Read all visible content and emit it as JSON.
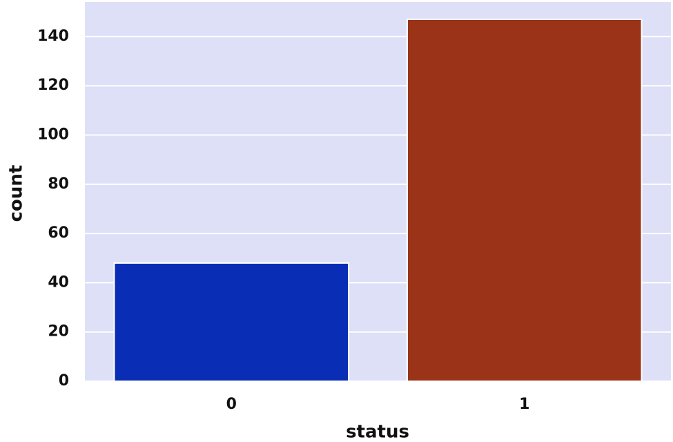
{
  "chart_data": {
    "type": "bar",
    "x_label": "status",
    "y_label": "count",
    "categories": [
      "0",
      "1"
    ],
    "values": [
      48,
      147
    ],
    "colors": [
      "#0a2db5",
      "#9a3318"
    ],
    "ylim": [
      0,
      154
    ],
    "yticks": [
      0,
      20,
      40,
      60,
      80,
      100,
      120,
      140
    ],
    "grid": true
  }
}
